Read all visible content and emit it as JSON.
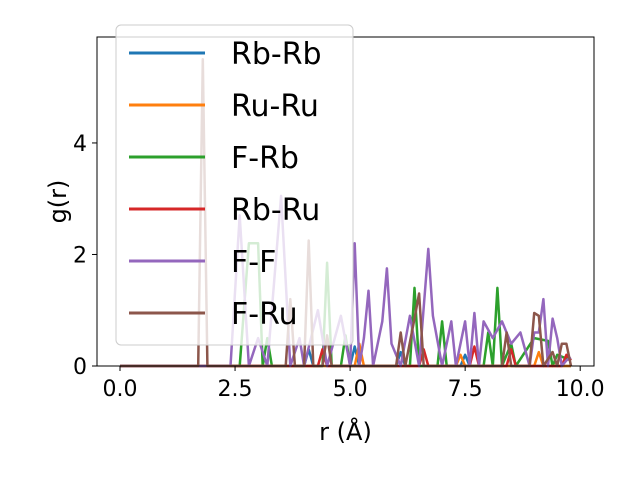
{
  "chart_data": {
    "type": "line",
    "title": "",
    "xlabel": "r (Å)",
    "ylabel": "g(r)",
    "xlim": [
      -0.5,
      10.3
    ],
    "ylim": [
      0,
      5.9
    ],
    "xticks": [
      "0.0",
      "2.5",
      "5.0",
      "7.5",
      "10.0"
    ],
    "xtick_values": [
      0,
      2.5,
      5,
      7.5,
      10
    ],
    "yticks": [
      "0",
      "2",
      "4"
    ],
    "ytick_values": [
      0,
      2,
      4
    ],
    "grid": false,
    "legend_position": "top-left",
    "series": [
      {
        "name": "Rb-Rb",
        "color": "#1f77b4",
        "points": [
          [
            0,
            0
          ],
          [
            4.0,
            0
          ],
          [
            4.1,
            0.3
          ],
          [
            4.2,
            0
          ],
          [
            5.0,
            0
          ],
          [
            5.1,
            0.35
          ],
          [
            5.2,
            0
          ],
          [
            6.0,
            0
          ],
          [
            6.1,
            0.25
          ],
          [
            6.2,
            0
          ],
          [
            7.4,
            0
          ],
          [
            7.5,
            0.2
          ],
          [
            7.6,
            0
          ],
          [
            9.8,
            0
          ]
        ]
      },
      {
        "name": "Ru-Ru",
        "color": "#ff7f0e",
        "points": [
          [
            0,
            0
          ],
          [
            5.1,
            0
          ],
          [
            5.2,
            0.4
          ],
          [
            5.3,
            0
          ],
          [
            7.3,
            0
          ],
          [
            7.4,
            0.2
          ],
          [
            7.5,
            0
          ],
          [
            9.0,
            0
          ],
          [
            9.1,
            0.25
          ],
          [
            9.2,
            0
          ],
          [
            9.8,
            0
          ]
        ]
      },
      {
        "name": "F-Rb",
        "color": "#2ca02c",
        "points": [
          [
            0,
            0
          ],
          [
            2.6,
            0
          ],
          [
            2.8,
            2.2
          ],
          [
            3.0,
            2.2
          ],
          [
            3.1,
            0
          ],
          [
            3.2,
            0.5
          ],
          [
            3.3,
            0
          ],
          [
            4.4,
            0
          ],
          [
            4.5,
            1.85
          ],
          [
            4.6,
            0
          ],
          [
            4.8,
            0
          ],
          [
            4.9,
            0.55
          ],
          [
            5.0,
            0
          ],
          [
            6.3,
            0
          ],
          [
            6.4,
            1.4
          ],
          [
            6.5,
            0
          ],
          [
            6.9,
            0
          ],
          [
            7.0,
            0.8
          ],
          [
            7.1,
            0
          ],
          [
            7.9,
            0
          ],
          [
            8.0,
            0.6
          ],
          [
            8.1,
            0
          ],
          [
            8.2,
            1.4
          ],
          [
            8.3,
            0
          ],
          [
            8.5,
            0.4
          ],
          [
            8.6,
            0
          ],
          [
            9.0,
            0.5
          ],
          [
            9.3,
            0.45
          ],
          [
            9.4,
            0
          ],
          [
            9.5,
            0.2
          ],
          [
            9.8,
            0.1
          ]
        ]
      },
      {
        "name": "Rb-Ru",
        "color": "#d62728",
        "points": [
          [
            0,
            0
          ],
          [
            4.3,
            0
          ],
          [
            4.4,
            0.3
          ],
          [
            4.5,
            0
          ],
          [
            6.5,
            0
          ],
          [
            6.6,
            0.3
          ],
          [
            6.7,
            0
          ],
          [
            7.6,
            0
          ],
          [
            7.7,
            0.35
          ],
          [
            7.8,
            0
          ],
          [
            8.4,
            0
          ],
          [
            8.5,
            0.3
          ],
          [
            8.6,
            0
          ],
          [
            9.6,
            0
          ],
          [
            9.7,
            0.2
          ],
          [
            9.8,
            0.1
          ]
        ]
      },
      {
        "name": "F-F",
        "color": "#9467bd",
        "points": [
          [
            0,
            0
          ],
          [
            2.4,
            0
          ],
          [
            2.6,
            2.7
          ],
          [
            2.8,
            0
          ],
          [
            3.0,
            0.5
          ],
          [
            3.2,
            0
          ],
          [
            3.5,
            3.05
          ],
          [
            3.7,
            0
          ],
          [
            3.9,
            0.5
          ],
          [
            4.0,
            0
          ],
          [
            4.3,
            1.0
          ],
          [
            4.5,
            0
          ],
          [
            4.8,
            0.9
          ],
          [
            5.0,
            0
          ],
          [
            5.1,
            2.2
          ],
          [
            5.2,
            0
          ],
          [
            5.3,
            0.5
          ],
          [
            5.4,
            1.35
          ],
          [
            5.5,
            0
          ],
          [
            5.7,
            0.8
          ],
          [
            5.8,
            1.75
          ],
          [
            5.9,
            0.4
          ],
          [
            6.1,
            0
          ],
          [
            6.3,
            0.9
          ],
          [
            6.5,
            0
          ],
          [
            6.7,
            2.1
          ],
          [
            6.8,
            0.9
          ],
          [
            7.0,
            0
          ],
          [
            7.2,
            0.8
          ],
          [
            7.3,
            0
          ],
          [
            7.5,
            0.8
          ],
          [
            7.6,
            0
          ],
          [
            7.7,
            0.95
          ],
          [
            7.8,
            0
          ],
          [
            7.9,
            0.8
          ],
          [
            8.1,
            0.5
          ],
          [
            8.3,
            0.8
          ],
          [
            8.5,
            0.4
          ],
          [
            8.7,
            0.6
          ],
          [
            8.9,
            0
          ],
          [
            9.0,
            0.6
          ],
          [
            9.1,
            0.6
          ],
          [
            9.2,
            1.2
          ],
          [
            9.3,
            0
          ],
          [
            9.4,
            0.85
          ],
          [
            9.5,
            0.5
          ],
          [
            9.6,
            0
          ],
          [
            9.7,
            0.1
          ],
          [
            9.8,
            0.15
          ]
        ]
      },
      {
        "name": "F-Ru",
        "color": "#8c564b",
        "points": [
          [
            0,
            0
          ],
          [
            1.7,
            0
          ],
          [
            1.8,
            5.5
          ],
          [
            1.9,
            0
          ],
          [
            3.6,
            0
          ],
          [
            3.7,
            1.2
          ],
          [
            3.8,
            0
          ],
          [
            4.0,
            0
          ],
          [
            4.1,
            2.25
          ],
          [
            4.2,
            0
          ],
          [
            4.4,
            0
          ],
          [
            4.5,
            0.55
          ],
          [
            4.6,
            0
          ],
          [
            6.0,
            0
          ],
          [
            6.1,
            0.6
          ],
          [
            6.2,
            0
          ],
          [
            6.4,
            0.85
          ],
          [
            6.5,
            1.3
          ],
          [
            6.6,
            0
          ],
          [
            8.3,
            0
          ],
          [
            8.4,
            0.6
          ],
          [
            8.5,
            0
          ],
          [
            8.9,
            0
          ],
          [
            9.0,
            0.95
          ],
          [
            9.1,
            0.9
          ],
          [
            9.2,
            0
          ],
          [
            9.4,
            0.25
          ],
          [
            9.5,
            0
          ],
          [
            9.6,
            0.4
          ],
          [
            9.7,
            0.4
          ],
          [
            9.8,
            0
          ]
        ]
      }
    ]
  }
}
